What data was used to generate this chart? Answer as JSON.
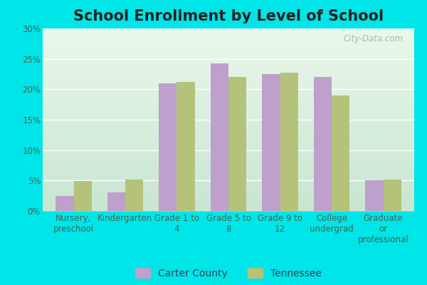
{
  "title": "School Enrollment by Level of School",
  "categories": [
    "Nursery,\npreschool",
    "Kindergarten",
    "Grade 1 to\n4",
    "Grade 5 to\n8",
    "Grade 9 to\n12",
    "College\nundergrad",
    "Graduate\nor\nprofessional"
  ],
  "carter_county": [
    2.5,
    3.0,
    21.0,
    24.3,
    22.5,
    22.0,
    5.0
  ],
  "tennessee": [
    4.9,
    5.2,
    21.2,
    22.0,
    22.7,
    19.0,
    5.1
  ],
  "carter_color": "#bf9fcc",
  "tennessee_color": "#b5c27a",
  "plot_bg_top": "#dff0e8",
  "plot_bg_bottom": "#c5e8d0",
  "outer_background": "#00e5e8",
  "ylim": [
    0,
    30
  ],
  "yticks": [
    0,
    5,
    10,
    15,
    20,
    25,
    30
  ],
  "legend_labels": [
    "Carter County",
    "Tennessee"
  ],
  "bar_width": 0.35,
  "title_fontsize": 15,
  "tick_fontsize": 8.5,
  "legend_fontsize": 10,
  "watermark": "City-Data.com"
}
